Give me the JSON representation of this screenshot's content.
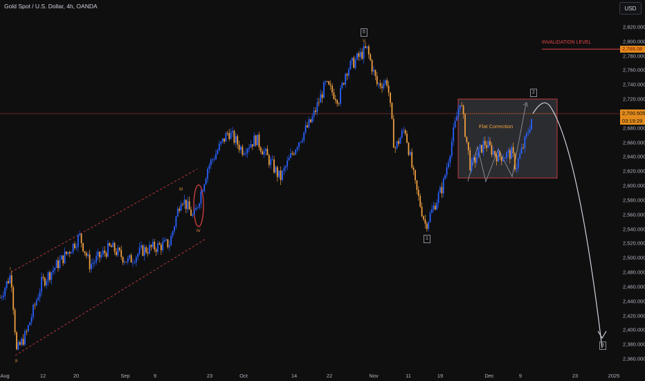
{
  "header": {
    "title": "Gold Spot / U.S. Dollar, 4h, OANDA",
    "currency_button": "USD"
  },
  "price": {
    "current": "2,700.505",
    "countdown": "03:19:29"
  },
  "invalidation": {
    "label": "INVALIDATION LEVEL",
    "value": "2,788.08"
  },
  "annotations": {
    "flat_correction": "Flat Correction",
    "wave_boxes": [
      "5",
      "2",
      "1",
      "3"
    ],
    "wave_small": [
      "I",
      "II",
      "III",
      "IV",
      "V"
    ]
  },
  "colors": {
    "up": "#2962ff",
    "down": "#f0a040",
    "background": "#0f0f10",
    "invalidation": "#e04545",
    "box_border": "#c23b3b"
  },
  "chart_data": {
    "type": "candlestick",
    "title": "Gold Spot / U.S. Dollar, 4h, OANDA",
    "ylim": [
      2350,
      2840
    ],
    "y_ticks": [
      "2,360.000",
      "2,380.000",
      "2,400.000",
      "2,420.000",
      "2,440.000",
      "2,460.000",
      "2,480.000",
      "2,500.000",
      "2,520.000",
      "2,540.000",
      "2,560.000",
      "2,580.000",
      "2,600.000",
      "2,620.000",
      "2,640.000",
      "2,660.000",
      "2,680.000",
      "2,700.000",
      "2,720.000",
      "2,740.000",
      "2,760.000",
      "2,780.000",
      "2,800.000",
      "2,820.000"
    ],
    "x_ticks": [
      "Aug",
      "12",
      "20",
      "Sep",
      "9",
      "23",
      "Oct",
      "14",
      "22",
      "Nov",
      "11",
      "19",
      "Dec",
      "9",
      "23",
      "2025"
    ],
    "price_path": [
      [
        "Aug",
        2445
      ],
      [
        "Aug",
        2478
      ],
      [
        "Aug",
        2370
      ],
      [
        "12",
        2395
      ],
      [
        "12",
        2465
      ],
      [
        "20",
        2510
      ],
      [
        "20",
        2530
      ],
      [
        "20",
        2490
      ],
      [
        "Sep",
        2515
      ],
      [
        "Sep",
        2495
      ],
      [
        "9",
        2510
      ],
      [
        "9",
        2515
      ],
      [
        "9",
        2520
      ],
      [
        "9",
        2585
      ],
      [
        "23",
        2555
      ],
      [
        "23",
        2625
      ],
      [
        "23",
        2675
      ],
      [
        "Oct",
        2650
      ],
      [
        "Oct",
        2665
      ],
      [
        "Oct",
        2610
      ],
      [
        "14",
        2660
      ],
      [
        "14",
        2690
      ],
      [
        "22",
        2740
      ],
      [
        "22",
        2720
      ],
      [
        "22",
        2760
      ],
      [
        "Nov",
        2790
      ],
      [
        "Nov",
        2740
      ],
      [
        "Nov",
        2745
      ],
      [
        "Nov",
        2650
      ],
      [
        "11",
        2680
      ],
      [
        "11",
        2600
      ],
      [
        "11",
        2545
      ],
      [
        "19",
        2600
      ],
      [
        "19",
        2720
      ],
      [
        "19",
        2625
      ],
      [
        "Dec",
        2660
      ],
      [
        "Dec",
        2640
      ],
      [
        "Dec",
        2645
      ],
      [
        "9",
        2625
      ],
      [
        "9",
        2665
      ],
      [
        "9",
        2700
      ]
    ],
    "projection": [
      [
        "9",
        2700
      ],
      [
        "9",
        2710
      ],
      [
        "23",
        2640
      ],
      [
        "2025",
        2380
      ]
    ],
    "invalidation_level": 2788.08,
    "current_price": 2700.505
  }
}
